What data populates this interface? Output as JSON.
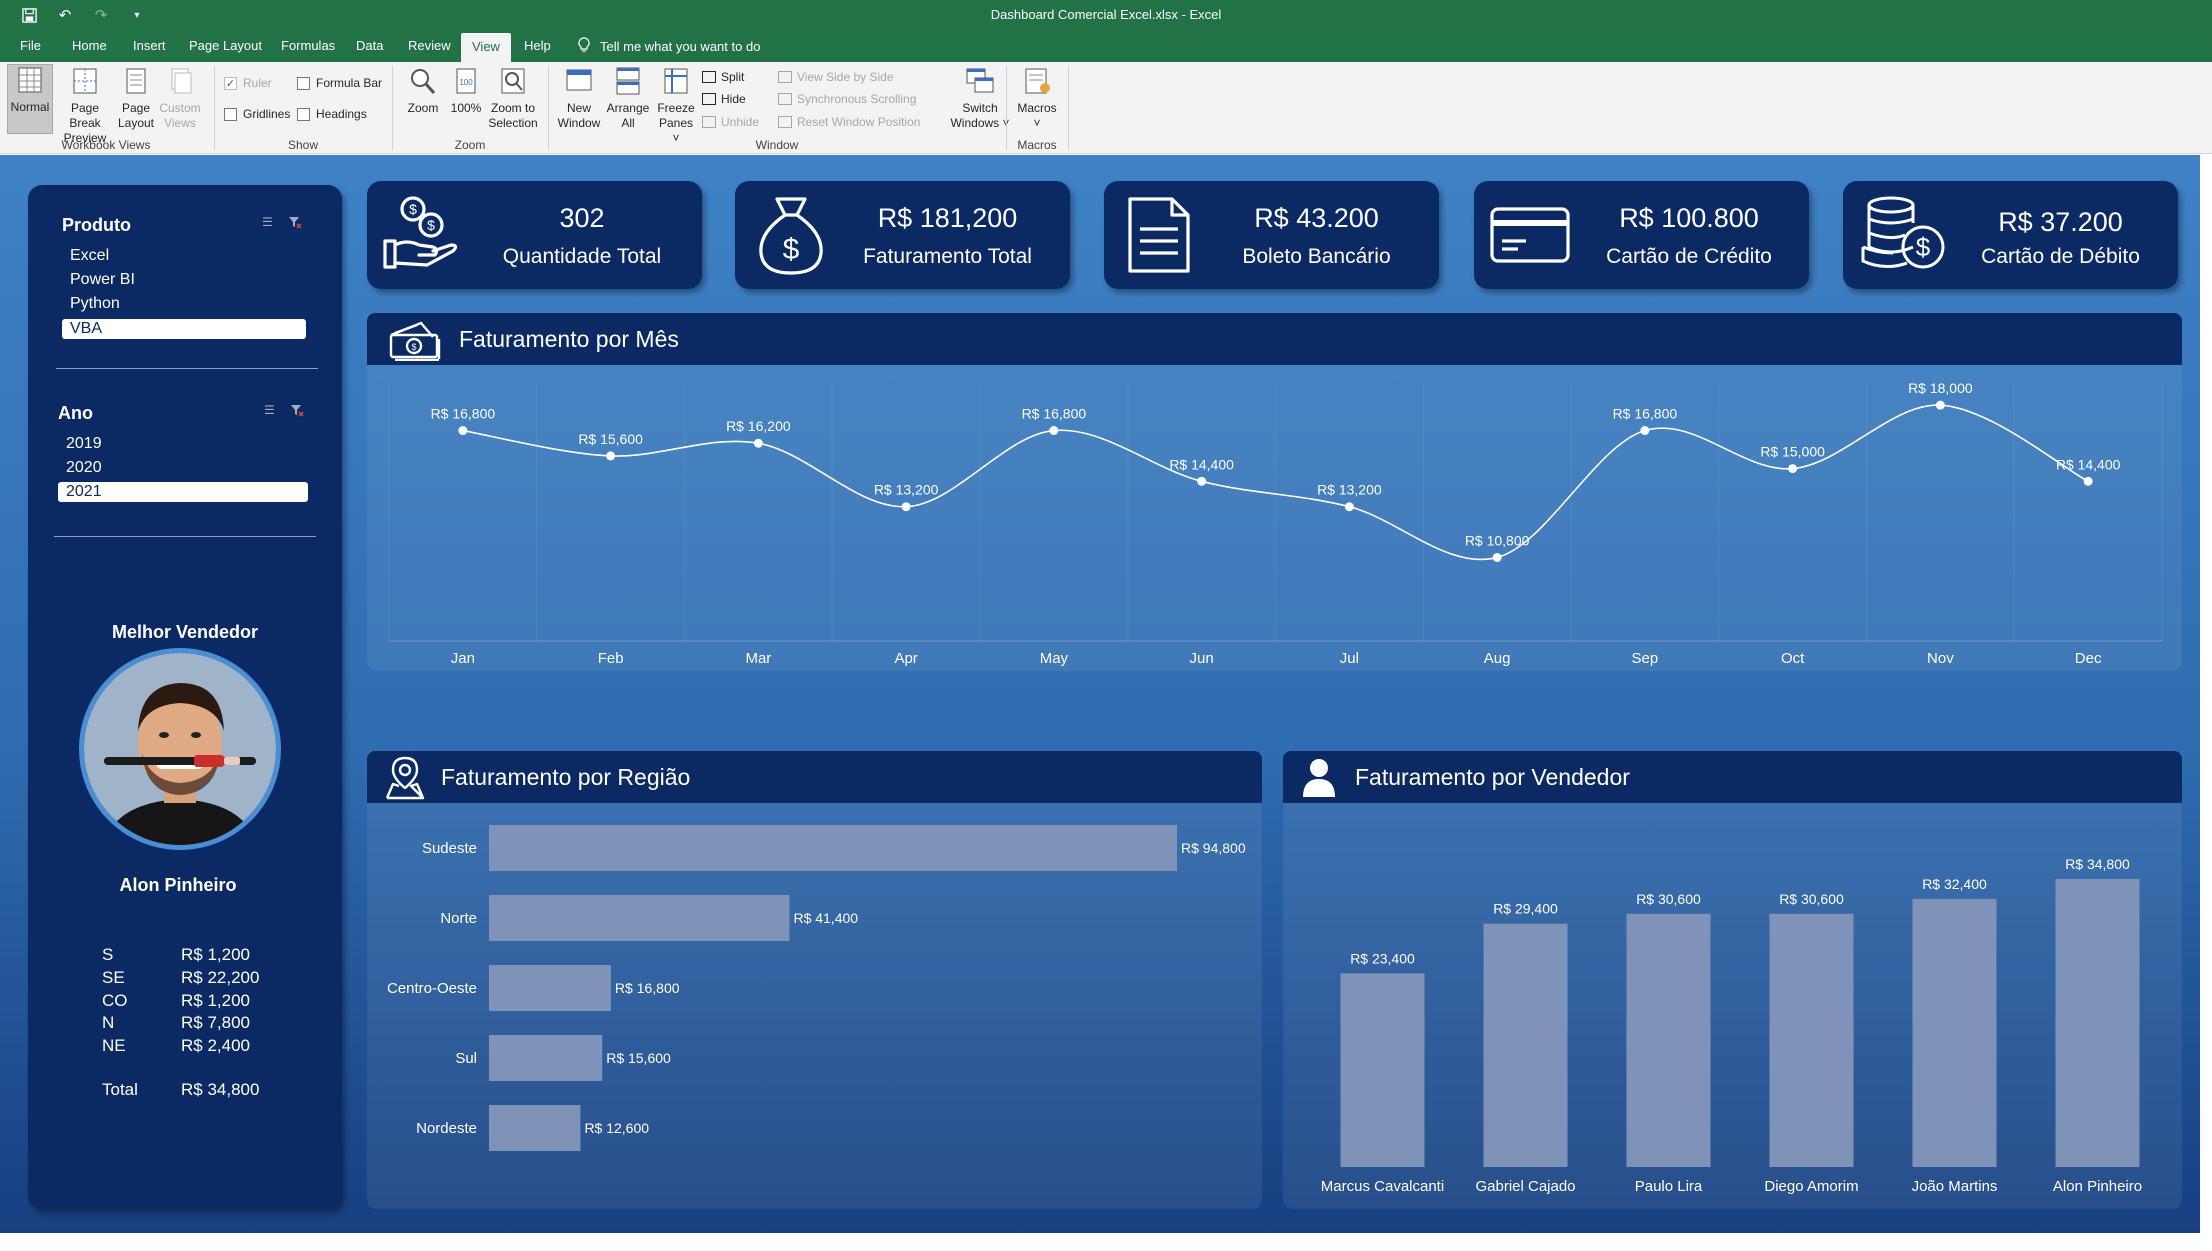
{
  "window": {
    "title": "Dashboard Comercial Excel.xlsx  -  Excel"
  },
  "tabs": [
    {
      "label": "File",
      "active": false
    },
    {
      "label": "Home",
      "active": false
    },
    {
      "label": "Insert",
      "active": false
    },
    {
      "label": "Page Layout",
      "active": false
    },
    {
      "label": "Formulas",
      "active": false
    },
    {
      "label": "Data",
      "active": false
    },
    {
      "label": "Review",
      "active": false
    },
    {
      "label": "View",
      "active": true
    },
    {
      "label": "Help",
      "active": false
    }
  ],
  "tell_me": "Tell me what you want to do",
  "ribbon": {
    "workbook_views": {
      "group": "Workbook Views",
      "normal": "Normal",
      "page_break_1": "Page Break",
      "page_break_2": "Preview",
      "page_layout_1": "Page",
      "page_layout_2": "Layout",
      "custom_views_1": "Custom",
      "custom_views_2": "Views"
    },
    "show": {
      "group": "Show",
      "ruler": "Ruler",
      "formula_bar": "Formula Bar",
      "gridlines": "Gridlines",
      "headings": "Headings"
    },
    "zoom": {
      "group": "Zoom",
      "zoom": "Zoom",
      "hundred": "100%",
      "zoom_sel_1": "Zoom to",
      "zoom_sel_2": "Selection"
    },
    "window": {
      "group": "Window",
      "new_window_1": "New",
      "new_window_2": "Window",
      "arrange_1": "Arrange",
      "arrange_2": "All",
      "freeze_1": "Freeze",
      "freeze_2": "Panes ˅",
      "split": "Split",
      "hide": "Hide",
      "unhide": "Unhide",
      "side_by_side": "View Side by Side",
      "sync_scroll": "Synchronous Scrolling",
      "reset_pos": "Reset Window Position",
      "switch_1": "Switch",
      "switch_2": "Windows ˅"
    },
    "macros": {
      "group": "Macros",
      "macros": "Macros",
      "caret": "˅"
    }
  },
  "sidebar": {
    "produto": {
      "title": "Produto",
      "items": [
        "Excel",
        "Power BI",
        "Python",
        "VBA"
      ],
      "selected": "VBA"
    },
    "ano": {
      "title": "Ano",
      "items": [
        "2019",
        "2020",
        "2021"
      ],
      "selected": "2021"
    },
    "melhor_vendedor": {
      "title": "Melhor Vendedor",
      "name": "Alon Pinheiro",
      "regions": [
        {
          "region": "S",
          "value": "R$ 1,200"
        },
        {
          "region": "SE",
          "value": "R$ 22,200"
        },
        {
          "region": "CO",
          "value": "R$ 1,200"
        },
        {
          "region": "N",
          "value": "R$ 7,800"
        },
        {
          "region": "NE",
          "value": "R$ 2,400"
        }
      ],
      "total_label": "Total",
      "total_value": "R$ 34,800"
    }
  },
  "kpis": [
    {
      "value": "302",
      "label": "Quantidade Total",
      "icon": "hand-coins-icon"
    },
    {
      "value": "R$ 181,200",
      "label": "Faturamento Total",
      "icon": "money-bag-icon"
    },
    {
      "value": "R$ 43.200",
      "label": "Boleto Bancário",
      "icon": "document-icon"
    },
    {
      "value": "R$ 100.800",
      "label": "Cartão de Crédito",
      "icon": "credit-card-icon"
    },
    {
      "value": "R$ 37.200",
      "label": "Cartão de Débito",
      "icon": "coin-stack-icon"
    }
  ],
  "month_chart": {
    "title": "Faturamento por Mês",
    "chart_data": {
      "type": "line",
      "categories": [
        "Jan",
        "Feb",
        "Mar",
        "Apr",
        "May",
        "Jun",
        "Jul",
        "Aug",
        "Sep",
        "Oct",
        "Nov",
        "Dec"
      ],
      "values": [
        16800,
        15600,
        16200,
        13200,
        16800,
        14400,
        13200,
        10800,
        16800,
        15000,
        18000,
        14400
      ],
      "labels": [
        "R$ 16,800",
        "R$ 15,600",
        "R$ 16,200",
        "R$ 13,200",
        "R$ 16,800",
        "R$ 14,400",
        "R$ 13,200",
        "R$ 10,800",
        "R$ 16,800",
        "R$ 15,000",
        "R$ 18,000",
        "R$ 14,400"
      ],
      "ylim": [
        0,
        20000
      ],
      "grid": false,
      "color": "#ffffff"
    }
  },
  "region_chart": {
    "title": "Faturamento por Região",
    "chart_data": {
      "type": "bar",
      "orientation": "horizontal",
      "categories": [
        "Sudeste",
        "Norte",
        "Centro-Oeste",
        "Sul",
        "Nordeste"
      ],
      "values": [
        94800,
        41400,
        16800,
        15600,
        12600
      ],
      "labels": [
        "R$ 94,800",
        "R$ 41,400",
        "R$ 16,800",
        "R$ 15,600",
        "R$ 12,600"
      ],
      "xlim": [
        0,
        94800
      ],
      "color": "#7f93b8"
    }
  },
  "seller_chart": {
    "title": "Faturamento por Vendedor",
    "chart_data": {
      "type": "bar",
      "orientation": "vertical",
      "categories": [
        "Marcus Cavalcanti",
        "Gabriel Cajado",
        "Paulo Lira",
        "Diego Amorim",
        "João Martins",
        "Alon Pinheiro"
      ],
      "values": [
        23400,
        29400,
        30600,
        30600,
        32400,
        34800
      ],
      "labels": [
        "R$ 23,400",
        "R$ 29,400",
        "R$ 30,600",
        "R$ 30,600",
        "R$ 32,400",
        "R$ 34,800"
      ],
      "ylim": [
        0,
        34800
      ],
      "color": "#7f93b8"
    }
  },
  "colors": {
    "excel_green": "#217346",
    "card_navy": "#0b2a63",
    "bg_blue": "#3f82c6",
    "bar_grey": "#7f93b8"
  }
}
